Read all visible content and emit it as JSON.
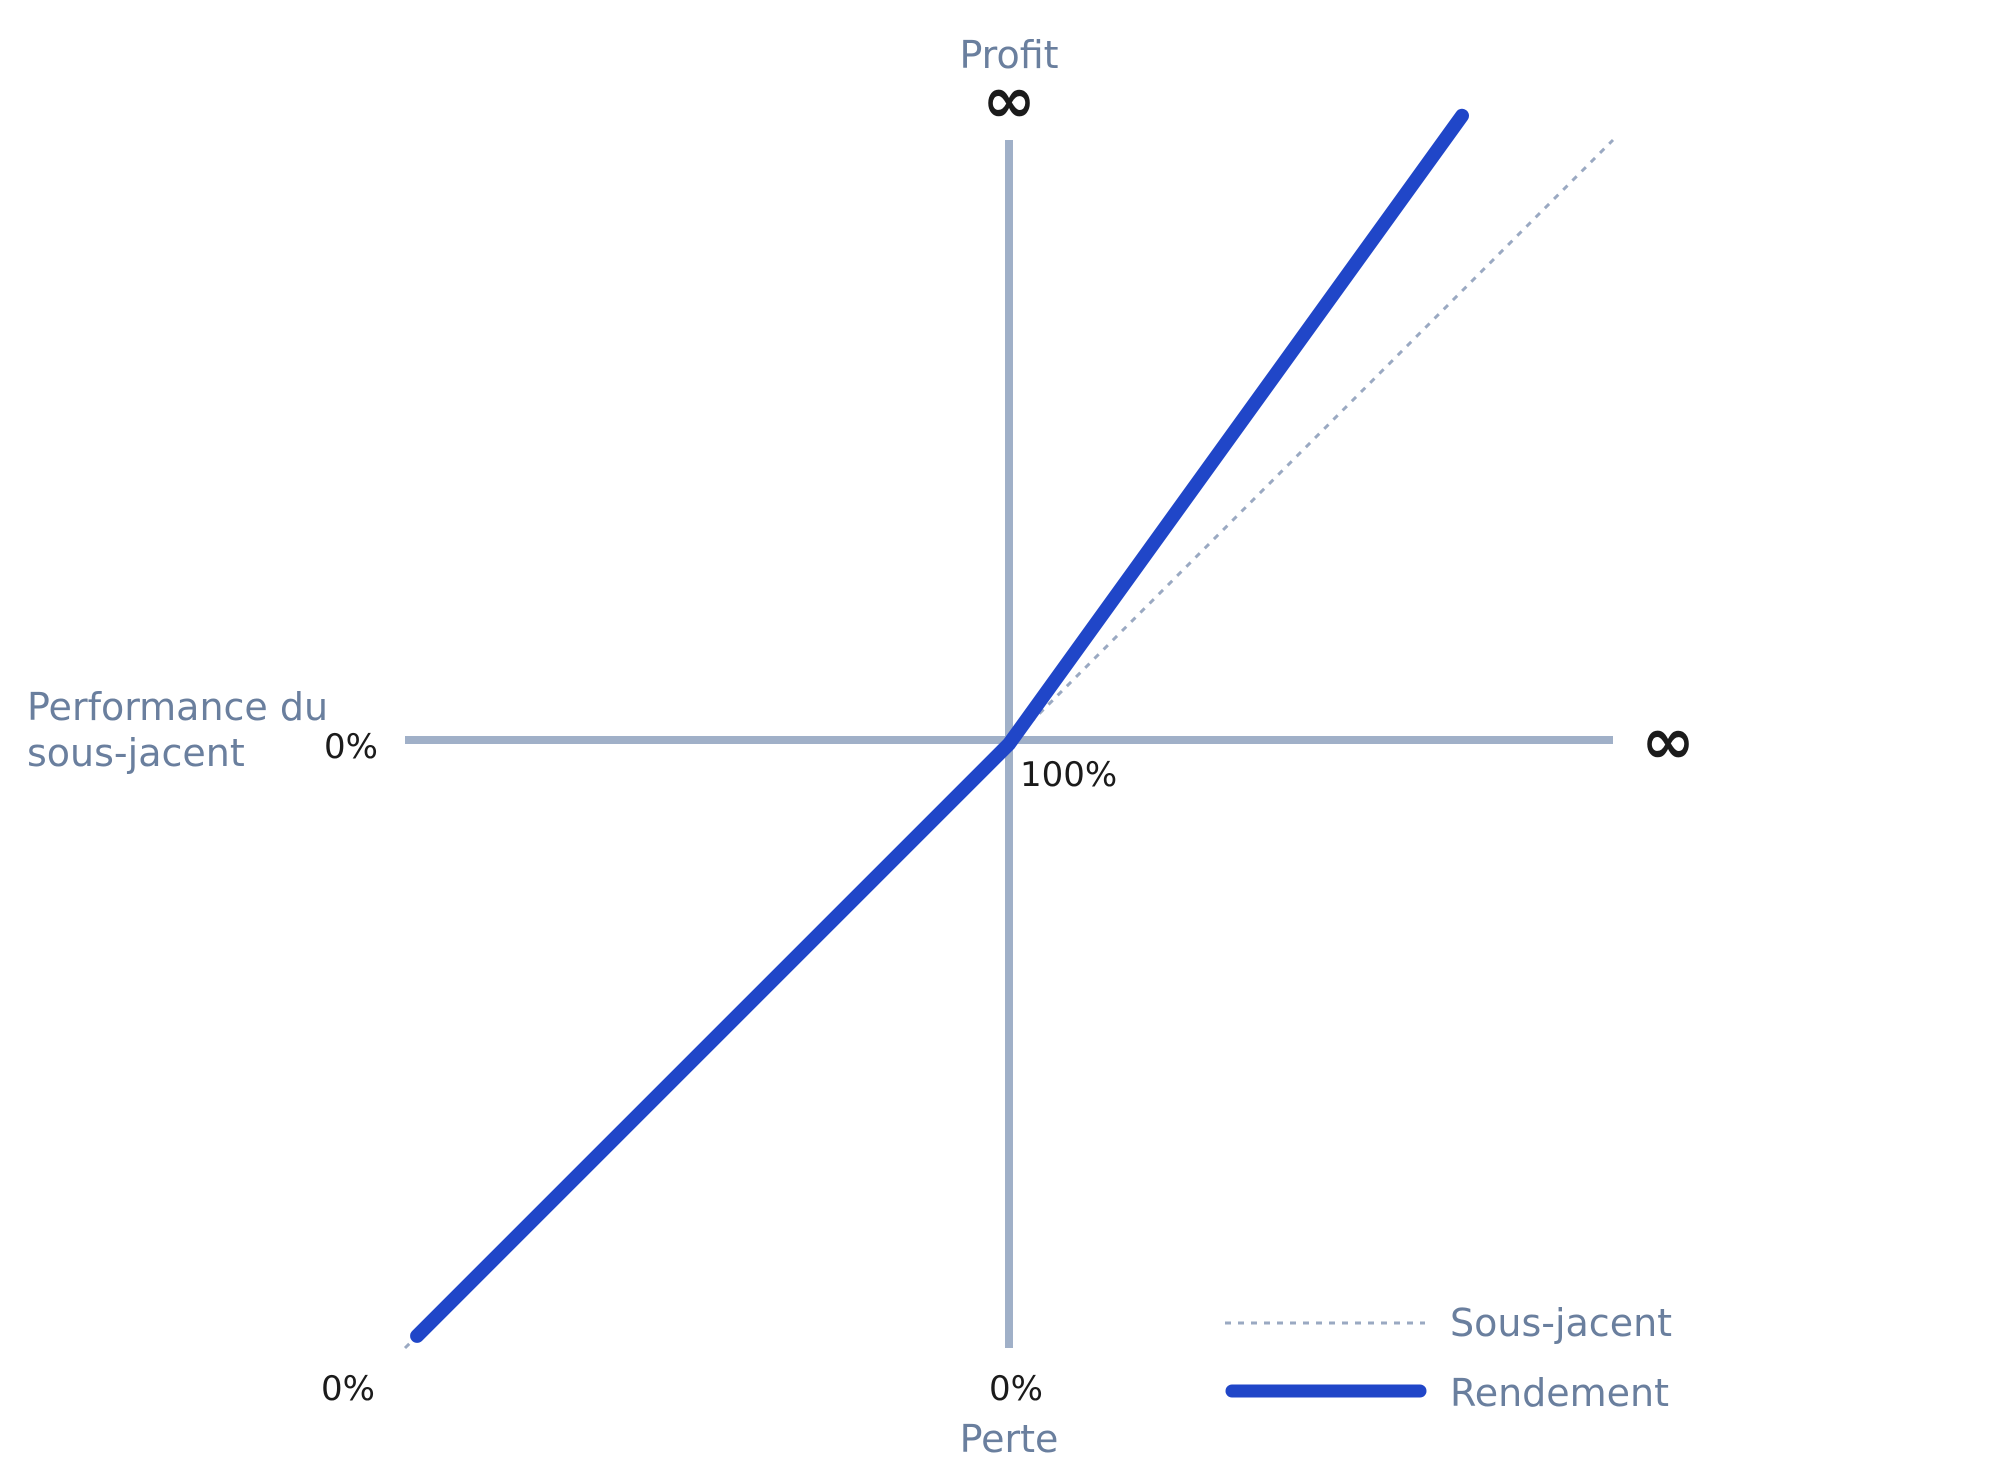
{
  "chart_data": {
    "type": "line",
    "axes": {
      "y_top_label": "Profit",
      "y_bottom_label": "Perte",
      "x_left_label": "Performance du sous-jacent",
      "x_left_label_line1": "Performance du",
      "x_left_label_line2": "sous-jacent",
      "y_top_tick": "∞",
      "x_right_tick": "∞",
      "y_zero_tick": "0%",
      "x_zero_tick": "100%",
      "bottom_left_tick": "0%",
      "bottom_center_tick": "0%",
      "xlim": [
        0,
        200
      ],
      "ylim": [
        -100,
        100
      ]
    },
    "series": [
      {
        "name": "Sous-jacent",
        "style": "dotted",
        "color": "#9aa9c2",
        "points": [
          [
            0,
            -100
          ],
          [
            100,
            0
          ],
          [
            200,
            100
          ]
        ]
      },
      {
        "name": "Rendement",
        "style": "solid",
        "color": "#2046c8",
        "points": [
          [
            2,
            -98
          ],
          [
            100,
            0
          ],
          [
            175,
            104
          ]
        ]
      }
    ],
    "legend": {
      "placement": "bottom-right",
      "items": [
        "Sous-jacent",
        "Rendement"
      ]
    },
    "colors": {
      "axis": "#a0b0c8",
      "label": "#6a7f9e",
      "accent": "#2046c8",
      "tick_text": "#1b1b1b"
    }
  }
}
